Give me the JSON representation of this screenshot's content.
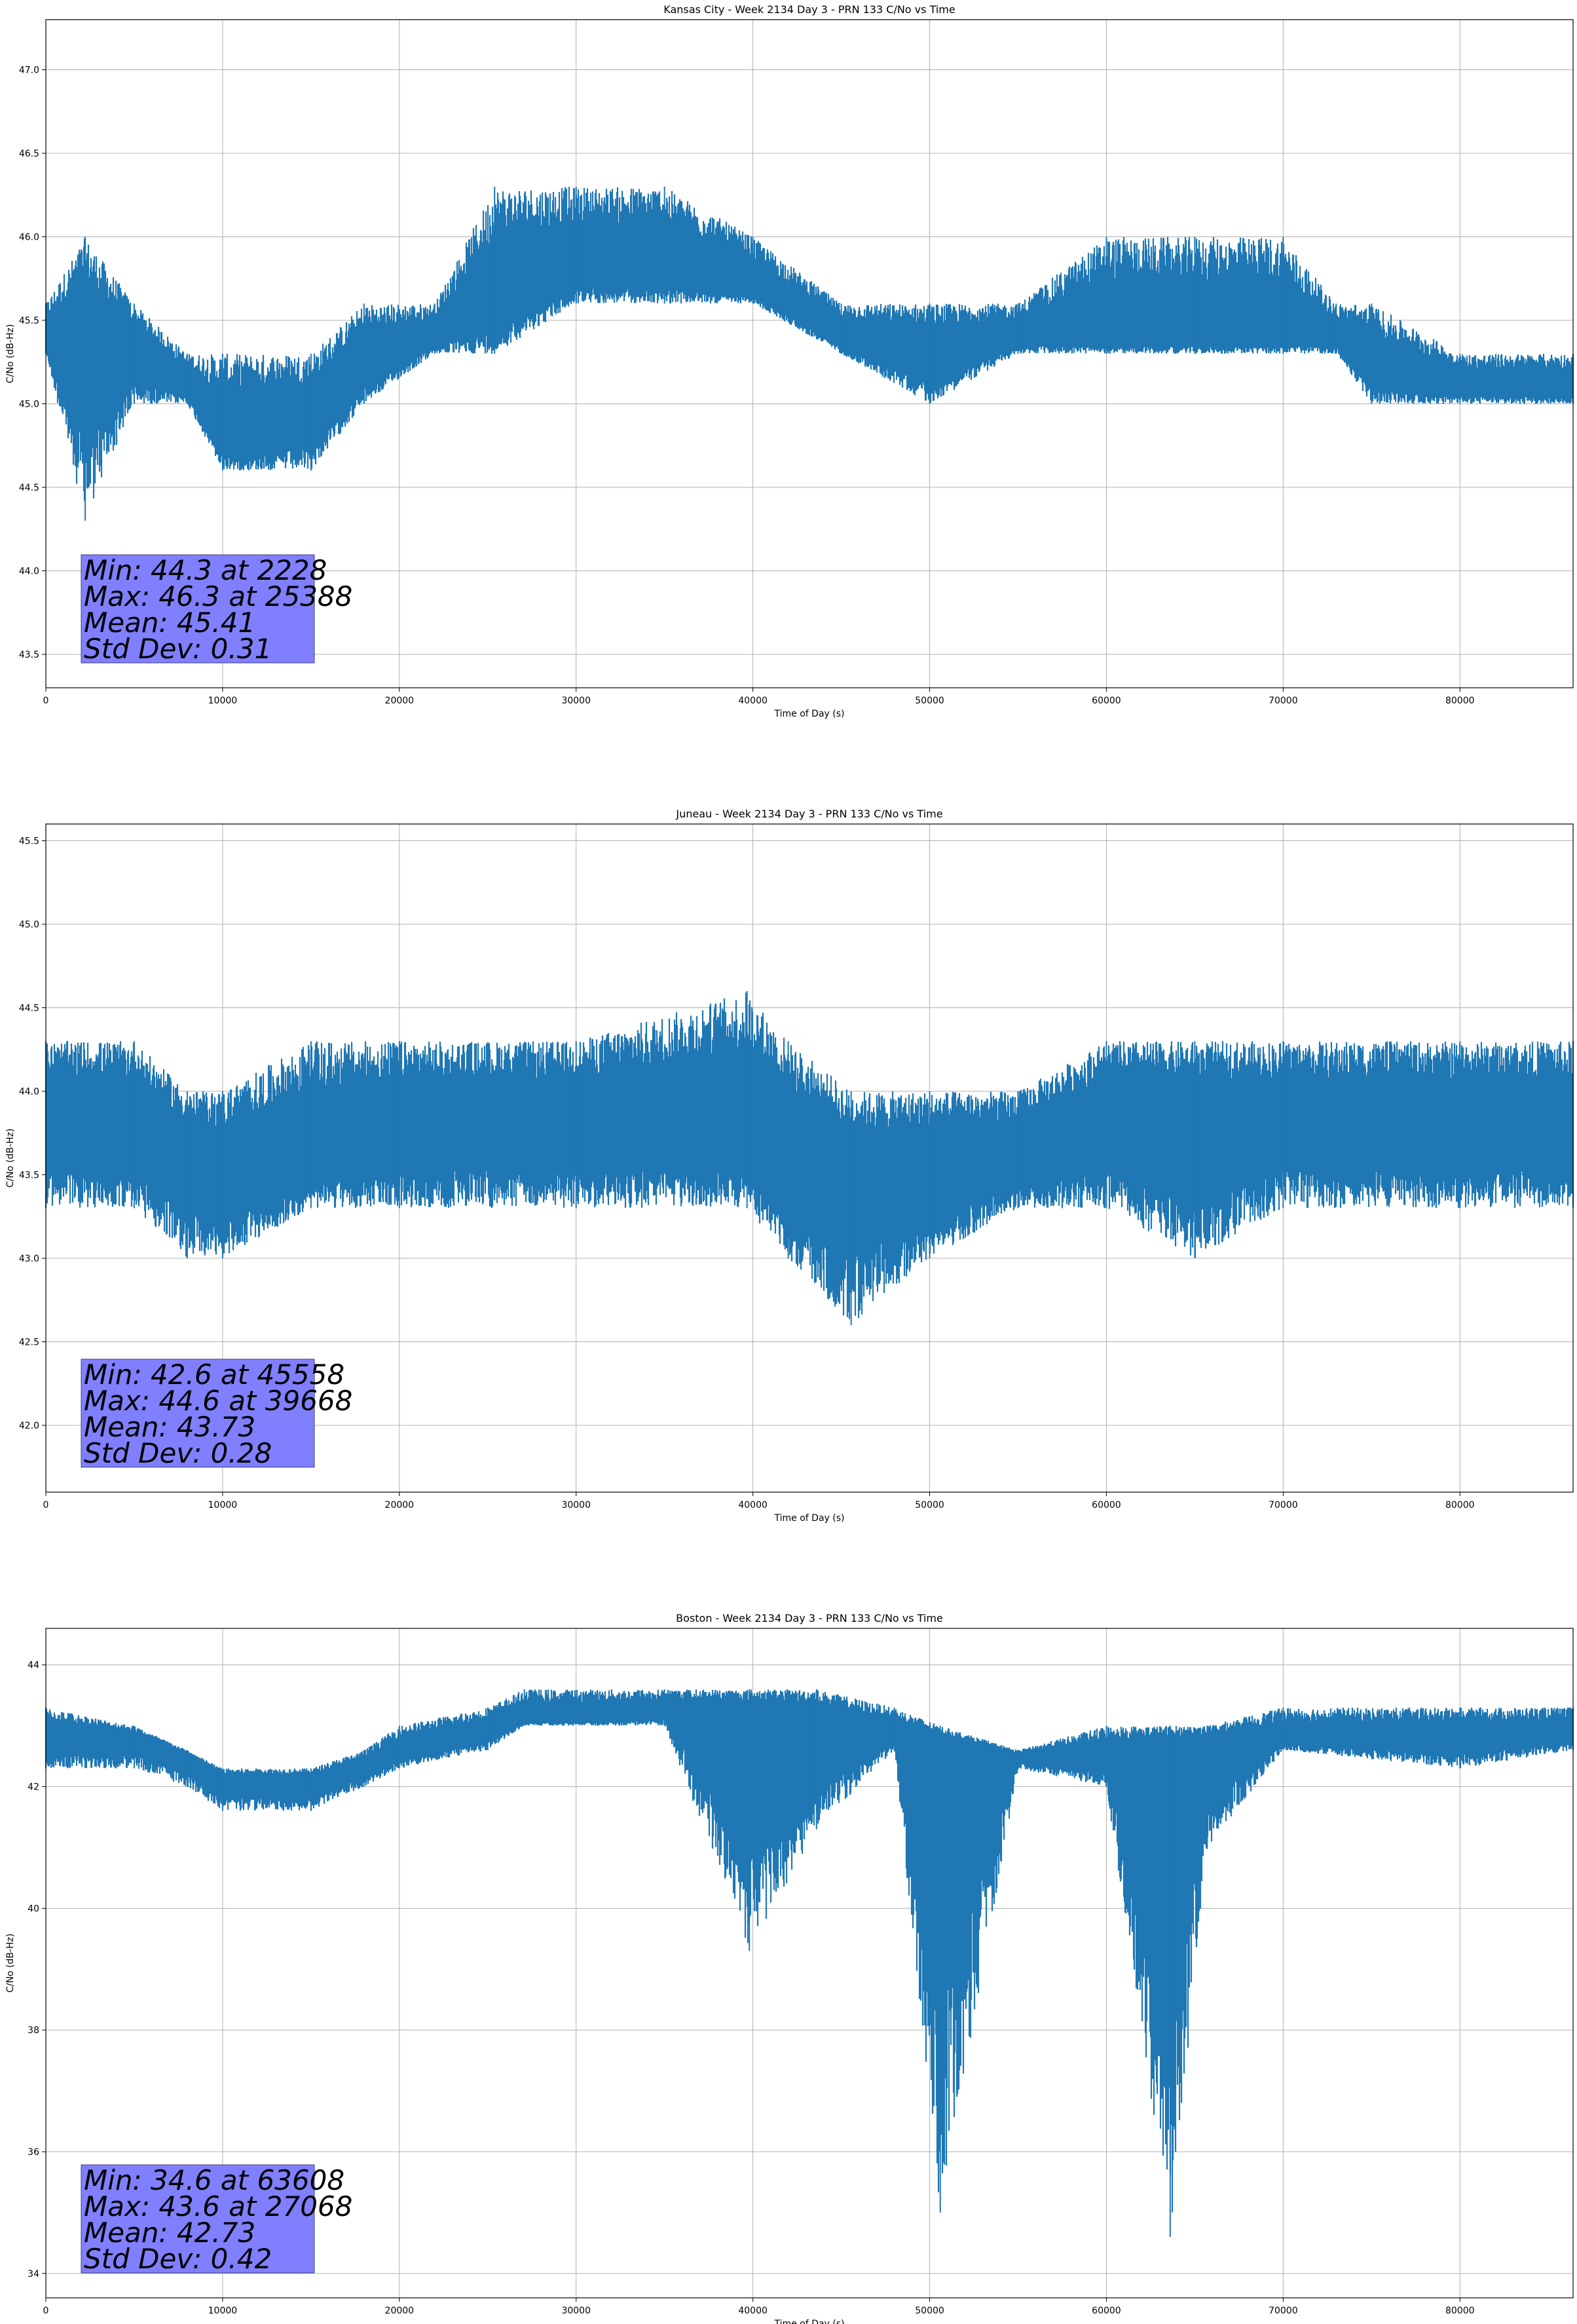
{
  "figure": {
    "series_color": "#1f77b4",
    "stats_box_color": "#8080ff",
    "grid": true
  },
  "chart_data": [
    {
      "type": "line",
      "title": "Kansas City - Week 2134 Day 3 - PRN 133 C/No vs Time",
      "xlabel": "Time of Day (s)",
      "ylabel": "C/No (dB-Hz)",
      "xlim": [
        0,
        86400
      ],
      "ylim": [
        43.3,
        47.3
      ],
      "xticks": [
        0,
        10000,
        20000,
        30000,
        40000,
        50000,
        60000,
        70000,
        80000
      ],
      "yticks": [
        "43.5",
        "44.0",
        "44.5",
        "45.0",
        "45.5",
        "46.0",
        "46.5",
        "47.0"
      ],
      "stats": [
        "Min: 44.3 at 2228",
        "Max: 46.3 at 25388",
        "Mean: 45.41",
        "Std Dev: 0.31"
      ],
      "series": [
        {
          "x": [
            0,
            2228,
            5000,
            8000,
            10000,
            15000,
            18000,
            22000,
            25388,
            30000,
            35000,
            40000,
            45000,
            50000,
            55000,
            60000,
            65000,
            70000,
            73000,
            75000,
            80000,
            86400
          ],
          "y_low": [
            45.3,
            44.3,
            45.0,
            45.0,
            44.6,
            44.6,
            45.0,
            45.3,
            45.3,
            45.6,
            45.6,
            45.6,
            45.3,
            45.0,
            45.3,
            45.3,
            45.3,
            45.3,
            45.3,
            45.0,
            45.0,
            45.0
          ],
          "y_mid": [
            45.4,
            45.4,
            45.3,
            45.1,
            44.8,
            44.9,
            45.2,
            45.4,
            45.6,
            45.8,
            45.8,
            45.7,
            45.4,
            45.3,
            45.4,
            45.4,
            45.4,
            45.4,
            45.4,
            45.2,
            45.1,
            45.1
          ],
          "y_high": [
            45.6,
            46.0,
            45.6,
            45.3,
            45.3,
            45.3,
            45.6,
            45.6,
            46.3,
            46.3,
            46.3,
            46.0,
            45.6,
            45.6,
            45.6,
            46.0,
            46.0,
            46.0,
            45.6,
            45.6,
            45.3,
            45.3
          ]
        }
      ]
    },
    {
      "type": "line",
      "title": "Juneau - Week 2134 Day 3 - PRN 133 C/No vs Time",
      "xlabel": "Time of Day (s)",
      "ylabel": "C/No (dB-Hz)",
      "xlim": [
        0,
        86400
      ],
      "ylim": [
        41.6,
        45.6
      ],
      "xticks": [
        0,
        10000,
        20000,
        30000,
        40000,
        50000,
        60000,
        70000,
        80000
      ],
      "yticks": [
        "42.0",
        "42.5",
        "43.0",
        "43.5",
        "44.0",
        "44.5",
        "45.0",
        "45.5"
      ],
      "stats": [
        "Min: 42.6 at 45558",
        "Max: 44.6 at 39668",
        "Mean: 43.73",
        "Std Dev: 0.28"
      ],
      "series": [
        {
          "x": [
            0,
            5000,
            8000,
            10000,
            15000,
            20000,
            30000,
            39668,
            42000,
            45558,
            50000,
            55000,
            60000,
            65000,
            70000,
            80000,
            86400
          ],
          "y_low": [
            43.3,
            43.3,
            43.0,
            43.0,
            43.3,
            43.3,
            43.3,
            43.3,
            43.0,
            42.6,
            43.0,
            43.3,
            43.3,
            43.0,
            43.3,
            43.3,
            43.3
          ],
          "y_mid": [
            43.8,
            43.8,
            43.6,
            43.5,
            43.6,
            43.8,
            43.8,
            43.8,
            43.6,
            43.5,
            43.5,
            43.6,
            43.8,
            43.8,
            43.8,
            43.8,
            43.8
          ],
          "y_high": [
            44.3,
            44.3,
            44.0,
            44.0,
            44.3,
            44.3,
            44.3,
            44.6,
            44.3,
            44.0,
            44.0,
            44.0,
            44.3,
            44.3,
            44.3,
            44.3,
            44.3
          ]
        }
      ]
    },
    {
      "type": "line",
      "title": "Boston - Week 2134 Day 3 - PRN 133 C/No vs Time",
      "xlabel": "Time of Day (s)",
      "ylabel": "C/No (dB-Hz)",
      "xlim": [
        0,
        86400
      ],
      "ylim": [
        33.6,
        44.6
      ],
      "xticks": [
        0,
        10000,
        20000,
        30000,
        40000,
        50000,
        60000,
        70000,
        80000
      ],
      "yticks": [
        "34",
        "36",
        "38",
        "40",
        "42",
        "44"
      ],
      "stats": [
        "Min: 34.6 at 63608",
        "Max: 43.6 at 27068",
        "Mean: 42.73",
        "Std Dev: 0.42"
      ],
      "series": [
        {
          "x": [
            0,
            5000,
            8000,
            10000,
            15000,
            18000,
            20000,
            25000,
            27068,
            35000,
            39800,
            43600,
            48000,
            50600,
            55000,
            60000,
            63608,
            65700,
            70000,
            80000,
            86400
          ],
          "y_low": [
            42.3,
            42.3,
            42.0,
            41.6,
            41.6,
            42.0,
            42.3,
            42.6,
            43.0,
            43.0,
            39.3,
            41.3,
            42.6,
            35.0,
            42.3,
            42.0,
            34.6,
            41.0,
            42.6,
            42.3,
            42.6
          ],
          "y_mid": [
            42.8,
            42.8,
            42.5,
            42.1,
            42.1,
            42.3,
            42.6,
            42.9,
            43.1,
            43.2,
            43.2,
            43.1,
            42.9,
            42.7,
            42.5,
            42.5,
            42.6,
            42.7,
            42.8,
            42.8,
            42.9
          ],
          "y_high": [
            43.3,
            43.0,
            42.6,
            42.3,
            42.3,
            42.6,
            43.0,
            43.3,
            43.6,
            43.6,
            43.6,
            43.6,
            43.3,
            43.0,
            42.6,
            43.0,
            43.0,
            43.0,
            43.3,
            43.3,
            43.3
          ]
        }
      ]
    }
  ]
}
